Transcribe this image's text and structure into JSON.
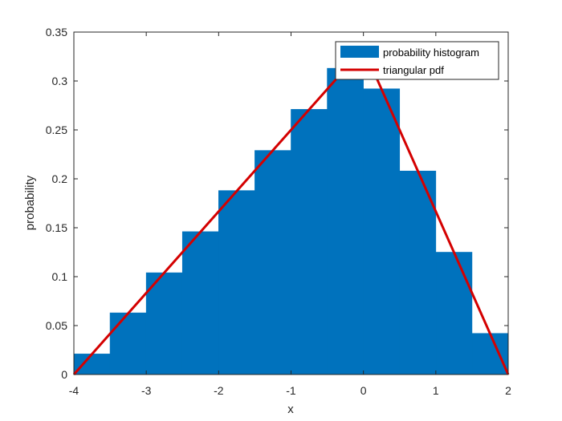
{
  "chart_data": {
    "type": "bar",
    "title": "",
    "xlabel": "x",
    "ylabel": "probability",
    "xlim": [
      -4,
      2
    ],
    "ylim": [
      0,
      0.35
    ],
    "xticks": [
      "-4",
      "-3",
      "-2",
      "-1",
      "0",
      "1",
      "2"
    ],
    "yticks": [
      "0",
      "0.05",
      "0.1",
      "0.15",
      "0.2",
      "0.25",
      "0.3",
      "0.35"
    ],
    "grid": false,
    "legend_position": "top-right",
    "series": [
      {
        "name": "probability histogram",
        "kind": "histogram",
        "color": "#0072BD",
        "x": [
          -3.75,
          -3.25,
          -2.75,
          -2.25,
          -1.75,
          -1.25,
          -0.75,
          -0.25,
          0.25,
          0.75,
          1.25,
          1.75
        ],
        "values": [
          0.021,
          0.063,
          0.104,
          0.146,
          0.188,
          0.229,
          0.271,
          0.313,
          0.292,
          0.208,
          0.125,
          0.042
        ]
      },
      {
        "name": "triangular pdf",
        "kind": "line",
        "color": "#D40000",
        "x": [
          -4,
          0,
          2
        ],
        "values": [
          0,
          0.3333,
          0
        ]
      }
    ]
  }
}
